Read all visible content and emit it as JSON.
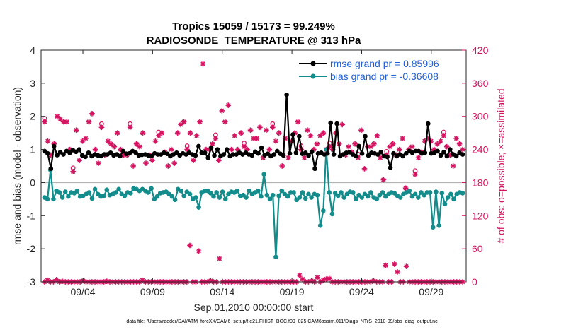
{
  "chart_data": {
    "type": "line",
    "title_line1": "Tropics 15059 / 15173 = 99.249%",
    "title_line2": "RADIOSONDE_TEMPERATURE @ 313 hPa",
    "xlabel": "Sep.01,2010 00:00:00 start",
    "ylabel_left": "rmse and bias (model - observation)",
    "ylabel_right": "# of obs: o=possible; ×=assimilated",
    "footnote": "data file: /Users/raeder/DAI/ATM_forcXX/CAM6_setup/f.e21.FHIST_BGC.f09_025.CAM6assim.011/Diags_NTrS_2010-09/obs_diag_output.nc",
    "xlim": [
      0,
      30.5
    ],
    "ylim_left": [
      -3,
      4
    ],
    "ylim_right": [
      0,
      420
    ],
    "x_ticks": [
      3,
      8,
      13,
      18,
      23,
      28
    ],
    "x_tick_labels": [
      "09/04",
      "09/09",
      "09/14",
      "09/19",
      "09/24",
      "09/29"
    ],
    "y_ticks_left": [
      "4",
      "3",
      "2",
      "1",
      "0",
      "-1",
      "-2",
      "-3"
    ],
    "y_ticks_left_values": [
      4,
      3,
      2,
      1,
      0,
      -1,
      -2,
      -3
    ],
    "y_ticks_right": [
      "420",
      "360",
      "300",
      "240",
      "180",
      "120",
      "60",
      "0"
    ],
    "y_ticks_right_values": [
      420,
      360,
      300,
      240,
      180,
      120,
      60,
      0
    ],
    "legend": [
      "rmse grand pr = 0.85996",
      "bias grand pr = -0.36608"
    ],
    "colors": {
      "rmse": "#000000",
      "bias": "#138c8c",
      "obs": "#d41460",
      "zero": "#b3b3b3"
    },
    "series": [
      {
        "name": "rmse",
        "values": [
          0.95,
          0.88,
          0.42,
          1.1,
          0.83,
          0.92,
          0.85,
          0.95,
          0.9,
          0.98,
          0.93,
          1.0,
          0.82,
          0.78,
          0.9,
          0.8,
          0.85,
          0.82,
          0.8,
          0.85,
          0.85,
          0.9,
          0.82,
          0.85,
          0.8,
          0.95,
          0.87,
          0.88,
          0.95,
          0.9,
          0.82,
          0.84,
          0.85,
          0.82,
          0.8,
          0.88,
          0.85,
          0.85,
          0.9,
          0.87,
          0.8,
          0.85,
          0.9,
          0.82,
          0.88,
          0.85,
          0.9,
          0.85,
          0.82,
          1.1,
          0.9,
          0.9,
          0.75,
          1.05,
          0.82,
          1.0,
          0.8,
          0.85,
          1.0,
          0.8,
          0.85,
          0.85,
          0.9,
          0.85,
          0.9,
          0.85,
          0.82,
          0.93,
          0.88,
          1.05,
          0.83,
          0.87,
          0.8,
          0.85,
          0.95,
          0.87,
          0.82,
          2.65,
          0.88,
          1.45,
          0.9,
          1.4,
          0.87,
          0.9,
          0.82,
          0.93,
          0.42,
          0.88,
          0.9,
          0.85,
          0.88,
          1.8,
          0.85,
          1.78,
          0.8,
          0.85,
          0.9,
          0.92,
          0.85,
          0.8,
          1.1,
          0.88,
          1.4,
          0.82,
          0.9,
          0.88,
          0.85,
          0.92,
          0.8,
          0.78,
          0.45,
          0.88,
          0.8,
          0.85,
          0.8,
          0.88,
          0.95,
          0.9,
          0.95,
          0.95,
          0.88,
          0.9,
          1.78,
          0.88,
          0.9,
          0.95,
          0.82,
          0.92,
          0.8,
          1.0,
          0.85,
          0.8,
          0.9,
          0.85
        ]
      },
      {
        "name": "bias",
        "values": [
          -0.45,
          -0.5,
          0.38,
          -0.5,
          -0.25,
          -0.3,
          -0.45,
          -0.28,
          -0.42,
          -0.3,
          -0.32,
          -0.25,
          -0.42,
          -0.4,
          -0.35,
          -0.3,
          -0.48,
          -0.2,
          -0.35,
          -0.42,
          -0.4,
          -0.22,
          -0.38,
          -0.35,
          -0.3,
          -0.2,
          -0.35,
          -0.4,
          -0.3,
          -0.32,
          -0.18,
          -0.2,
          -0.25,
          -0.2,
          -0.25,
          -0.3,
          -0.18,
          -0.5,
          -0.42,
          -0.32,
          -0.3,
          -0.28,
          -0.35,
          -0.42,
          -0.52,
          -0.2,
          -0.25,
          -0.4,
          -0.28,
          -0.35,
          -0.5,
          -0.45,
          -0.75,
          -0.3,
          -0.25,
          -0.25,
          -0.32,
          -0.42,
          -0.3,
          -0.45,
          -0.28,
          -0.5,
          -0.35,
          -0.28,
          -0.3,
          -0.25,
          -0.4,
          -0.38,
          -0.45,
          -0.25,
          -0.35,
          -0.3,
          -0.25,
          -0.42,
          0.25,
          -0.38,
          -0.5,
          -0.38,
          -2.25,
          -0.4,
          -0.25,
          -0.35,
          -0.42,
          -0.3,
          -0.3,
          -0.52,
          -0.45,
          -0.3,
          -0.48,
          -0.35,
          -0.45,
          -0.35,
          -0.38,
          -1.3,
          -0.85,
          1.0,
          -0.3,
          -0.95,
          -0.32,
          -0.4,
          -0.3,
          -0.45,
          -0.35,
          -0.28,
          -0.3,
          -0.5,
          -0.38,
          -0.45,
          -0.35,
          -0.42,
          -0.3,
          -0.45,
          -0.5,
          -0.38,
          -0.3,
          -0.42,
          -0.35,
          -0.3,
          -0.32,
          -0.4,
          -0.45,
          -0.35,
          -0.3,
          -0.25,
          -0.42,
          -0.35,
          -0.45,
          -0.3,
          -0.38,
          -0.3,
          -0.3,
          -1.35,
          -0.28,
          -1.3,
          -0.32,
          -0.65,
          -0.45,
          -0.35,
          -0.5,
          -0.35,
          -0.3,
          -0.32
        ]
      },
      {
        "name": "obs_possible",
        "values": [
          290,
          255,
          230,
          250,
          300,
          295,
          290,
          290,
          240,
          200,
          275,
          220,
          255,
          260,
          290,
          305,
          240,
          215,
          280,
          230,
          255,
          250,
          245,
          270,
          240,
          230,
          230,
          280,
          210,
          250,
          245,
          270,
          215,
          230,
          220,
          255,
          265,
          270,
          235,
          210,
          240,
          215,
          270,
          285,
          290,
          240,
          270,
          220,
          265,
          290,
          395,
          240,
          240,
          250,
          260,
          220,
          310,
          290,
          320,
          240,
          265,
          240,
          270,
          245,
          240,
          275,
          260,
          260,
          280,
          225,
          275,
          240,
          280,
          255,
          270,
          210,
          260,
          225,
          255,
          270,
          290,
          240,
          225,
          275,
          265,
          240,
          250,
          265,
          270,
          240,
          245,
          240,
          270,
          250,
          285,
          230,
          245,
          235,
          250,
          225,
          275,
          205,
          245,
          245,
          250,
          265,
          225,
          185,
          230,
          245,
          250,
          230,
          240,
          260,
          170,
          240,
          245,
          195,
          225,
          235,
          255,
          260,
          255,
          240,
          250,
          255,
          265,
          245,
          230,
          210,
          260,
          250,
          240
        ]
      },
      {
        "name": "obs_low",
        "values": [
          0,
          3,
          0,
          0,
          4,
          0,
          1,
          0,
          0,
          0,
          0,
          0,
          0,
          2,
          0,
          0,
          0,
          0,
          0,
          0,
          0,
          1,
          0,
          0,
          0,
          0,
          0,
          0,
          0,
          0,
          0,
          0,
          0,
          3,
          0,
          0,
          0,
          0,
          0,
          0,
          0,
          0,
          0,
          0,
          0,
          0,
          0,
          0,
          0,
          66,
          0,
          0,
          56,
          0,
          0,
          0,
          2,
          0,
          0,
          42,
          0,
          0,
          0,
          0,
          0,
          0,
          0,
          0,
          0,
          0,
          0,
          0,
          0,
          0,
          0,
          0,
          0,
          0,
          0,
          0,
          0,
          0,
          0,
          0,
          0,
          0,
          12,
          5,
          0,
          0,
          2,
          0,
          8,
          0,
          3,
          5,
          6,
          0,
          0,
          0,
          0,
          0,
          0,
          0,
          0,
          0,
          0,
          0,
          0,
          0,
          0,
          2,
          0,
          0,
          0,
          30,
          0,
          0,
          32,
          18,
          0,
          0,
          28,
          0,
          0,
          0,
          0,
          0,
          0,
          0,
          0,
          0,
          0,
          0,
          0,
          0,
          0,
          0,
          0,
          0,
          0,
          0
        ]
      }
    ]
  }
}
